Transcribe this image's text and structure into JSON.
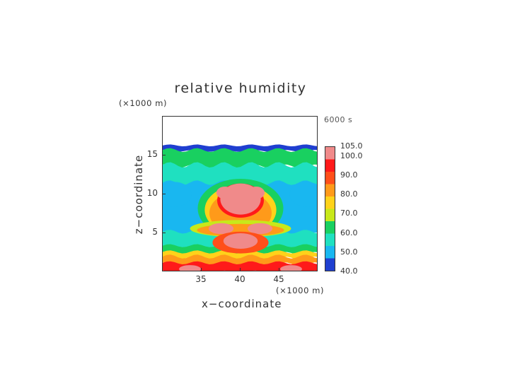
{
  "chart_data": {
    "type": "heatmap",
    "title": "relative humidity",
    "xlabel": "x−coordinate",
    "ylabel": "z−coordinate",
    "x_unit": "(×1000 m)",
    "y_unit": "(×1000 m)",
    "time_label": "6000 s",
    "xlim": [
      30,
      50
    ],
    "ylim": [
      0,
      20
    ],
    "x_ticks": [
      35,
      40,
      45
    ],
    "y_ticks": [
      5,
      10,
      15
    ],
    "colorbar": {
      "ticks": [
        "105.0",
        "100.0",
        "90.0",
        "80.0",
        "70.0",
        "60.0",
        "50.0",
        "40.0"
      ],
      "range": [
        40,
        105
      ]
    },
    "colors": {
      "below_50": "#1f3fd0",
      "near_55": "#19b7f0",
      "near_60": "#1fe0c0",
      "near_65": "#19d060",
      "near_70": "#c8e81a",
      "near_75": "#ffd21a",
      "near_80": "#ff9a1a",
      "near_90": "#ff4f1a",
      "near_100": "#ff1a1a",
      "above_100": "#f08a8a"
    }
  }
}
